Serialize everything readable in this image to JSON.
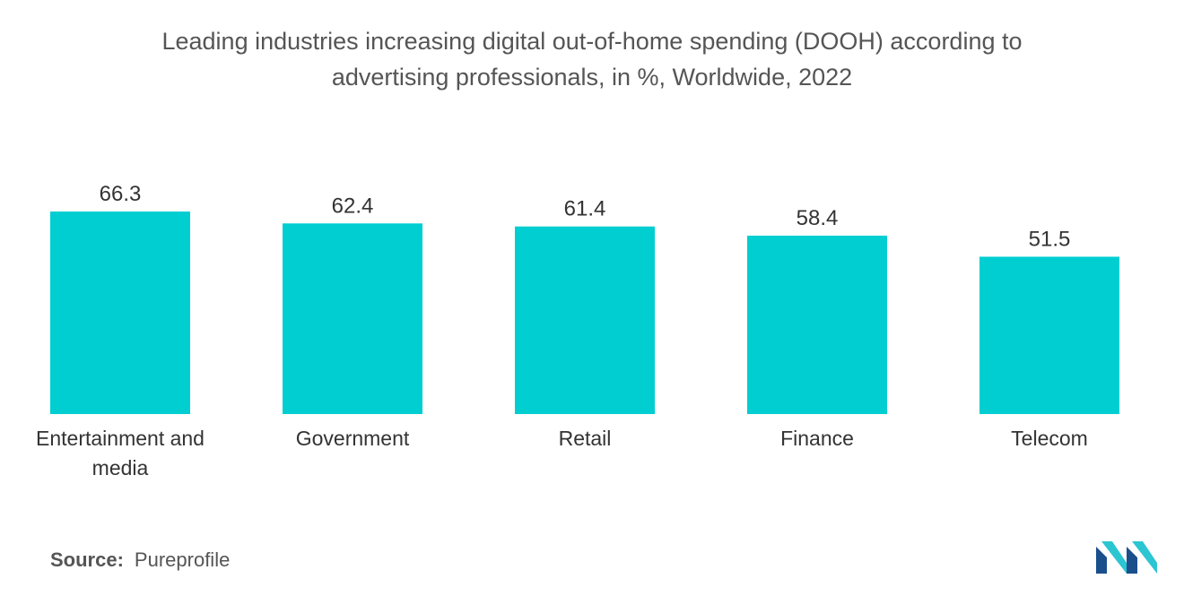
{
  "title_line1": "Leading industries increasing digital out-of-home spending (DOOH) according to",
  "title_line2": "advertising professionals, in %, Worldwide, 2022",
  "source": {
    "label": "Source:",
    "value": "Pureprofile"
  },
  "colors": {
    "bar": "#00CED1",
    "text": "#333333",
    "logo_dark": "#1b4f8c",
    "logo_light": "#2cc5d2"
  },
  "chart_data": {
    "type": "bar",
    "categories": [
      [
        "Entertainment and",
        "media"
      ],
      [
        "Government"
      ],
      [
        "Retail"
      ],
      [
        "Finance"
      ],
      [
        "Telecom"
      ]
    ],
    "values": [
      66.3,
      62.4,
      61.4,
      58.4,
      51.5
    ],
    "value_labels": [
      "66.3",
      "62.4",
      "61.4",
      "58.4",
      "51.5"
    ],
    "title": "Leading industries increasing digital out-of-home spending (DOOH) according to advertising professionals, in %, Worldwide, 2022",
    "xlabel": "",
    "ylabel": "",
    "ylim": [
      0,
      66.3
    ],
    "grid": false,
    "legend": "none"
  }
}
